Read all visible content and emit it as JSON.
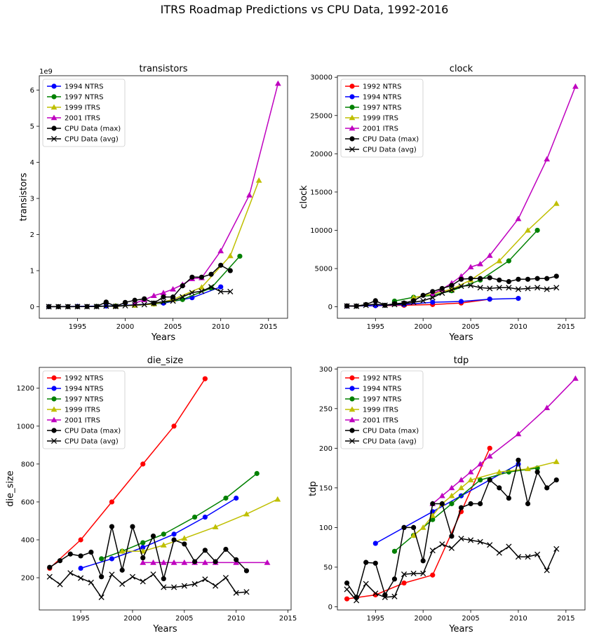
{
  "figure_title": "ITRS Roadmap Predictions vs CPU Data, 1992-2016",
  "series_styles": {
    "1992 NTRS": {
      "color": "#ff0000",
      "marker": "circle"
    },
    "1994 NTRS": {
      "color": "#0000ff",
      "marker": "circle"
    },
    "1997 NTRS": {
      "color": "#008000",
      "marker": "circle"
    },
    "1999 ITRS": {
      "color": "#bfbf00",
      "marker": "triangle"
    },
    "2001 ITRS": {
      "color": "#bf00bf",
      "marker": "triangle"
    },
    "CPU Data (max)": {
      "color": "#000000",
      "marker": "circle"
    },
    "CPU Data (avg)": {
      "color": "#000000",
      "marker": "x"
    }
  },
  "chart_data": [
    {
      "type": "line",
      "title": "transistors",
      "xlabel": "Years",
      "ylabel": "transistors",
      "xlim": [
        1991,
        2017
      ],
      "ylim": [
        -0.32,
        6.4
      ],
      "xticks": [
        1995,
        2000,
        2005,
        2010,
        2015
      ],
      "yticks": [
        0,
        1,
        2,
        3,
        4,
        5,
        6
      ],
      "y_multiplier_label": "1e9",
      "legend_position": "upper left",
      "series": [
        {
          "name": "1994 NTRS",
          "x": [
            1992,
            1995,
            1998,
            2001,
            2004,
            2007,
            2010
          ],
          "y": [
            0.003,
            0.01,
            0.02,
            0.05,
            0.1,
            0.25,
            0.55
          ]
        },
        {
          "name": "1997 NTRS",
          "x": [
            1997,
            1999,
            2001,
            2003,
            2006,
            2009,
            2012
          ],
          "y": [
            0.011,
            0.021,
            0.04,
            0.076,
            0.2,
            0.52,
            1.4
          ]
        },
        {
          "name": "1999 ITRS",
          "x": [
            1999,
            2001,
            2003,
            2005,
            2008,
            2011,
            2014
          ],
          "y": [
            0.021,
            0.04,
            0.076,
            0.2,
            0.54,
            1.41,
            3.5
          ]
        },
        {
          "name": "2001 ITRS",
          "x": [
            2001,
            2002,
            2003,
            2004,
            2005,
            2006,
            2007,
            2008,
            2010,
            2013,
            2016
          ],
          "y": [
            0.097,
            0.193,
            0.307,
            0.386,
            0.488,
            0.615,
            0.773,
            0.8,
            1.546,
            3.092,
            6.184
          ]
        },
        {
          "name": "CPU Data (max)",
          "x": [
            1992,
            1993,
            1994,
            1995,
            1996,
            1997,
            1998,
            1999,
            2000,
            2001,
            2002,
            2003,
            2004,
            2005,
            2006,
            2007,
            2008,
            2009,
            2010,
            2011
          ],
          "y": [
            0.003,
            0.003,
            0.003,
            0.004,
            0.006,
            0.008,
            0.13,
            0.01,
            0.12,
            0.18,
            0.22,
            0.1,
            0.27,
            0.27,
            0.58,
            0.82,
            0.82,
            0.9,
            1.15,
            1.0
          ]
        },
        {
          "name": "CPU Data (avg)",
          "x": [
            1992,
            1993,
            1994,
            1995,
            1996,
            1997,
            1998,
            1999,
            2000,
            2001,
            2002,
            2003,
            2004,
            2005,
            2006,
            2007,
            2008,
            2009,
            2010,
            2011
          ],
          "y": [
            0.002,
            0.002,
            0.002,
            0.003,
            0.004,
            0.005,
            0.02,
            0.01,
            0.03,
            0.05,
            0.06,
            0.1,
            0.14,
            0.16,
            0.27,
            0.39,
            0.43,
            0.55,
            0.42,
            0.42
          ]
        }
      ]
    },
    {
      "type": "line",
      "title": "clock",
      "xlabel": "Years",
      "ylabel": "clock",
      "xlim": [
        1991,
        2017
      ],
      "ylim": [
        -1500,
        30200
      ],
      "xticks": [
        1995,
        2000,
        2005,
        2010,
        2015
      ],
      "yticks": [
        0,
        5000,
        10000,
        15000,
        20000,
        25000,
        30000
      ],
      "y_multiplier_label": "",
      "legend_position": "upper left",
      "series": [
        {
          "name": "1992 NTRS",
          "x": [
            1992,
            1995,
            1998,
            2001,
            2004,
            2007
          ],
          "y": [
            100,
            150,
            200,
            300,
            500,
            1000
          ]
        },
        {
          "name": "1994 NTRS",
          "x": [
            1992,
            1995,
            1998,
            2001,
            2004,
            2007,
            2010
          ],
          "y": [
            100,
            150,
            300,
            600,
            700,
            1000,
            1100
          ]
        },
        {
          "name": "1997 NTRS",
          "x": [
            1997,
            1999,
            2001,
            2003,
            2006,
            2009,
            2012
          ],
          "y": [
            750,
            1250,
            1500,
            2100,
            3500,
            6000,
            10000
          ]
        },
        {
          "name": "1999 ITRS",
          "x": [
            1999,
            2001,
            2003,
            2005,
            2008,
            2011,
            2014
          ],
          "y": [
            1200,
            1700,
            2300,
            3500,
            6000,
            10000,
            13500
          ]
        },
        {
          "name": "2001 ITRS",
          "x": [
            2001,
            2002,
            2003,
            2004,
            2005,
            2006,
            2007,
            2010,
            2013,
            2016
          ],
          "y": [
            1700,
            2300,
            3100,
            4000,
            5200,
            5600,
            6700,
            11500,
            19300,
            28800
          ]
        },
        {
          "name": "CPU Data (max)",
          "x": [
            1992,
            1993,
            1994,
            1995,
            1996,
            1997,
            1998,
            1999,
            2000,
            2001,
            2002,
            2003,
            2004,
            2005,
            2006,
            2007,
            2008,
            2009,
            2010,
            2011,
            2012,
            2013,
            2014
          ],
          "y": [
            120,
            100,
            300,
            800,
            200,
            400,
            500,
            800,
            1500,
            2000,
            2400,
            2800,
            3600,
            3700,
            3700,
            3800,
            3500,
            3300,
            3600,
            3600,
            3700,
            3700,
            4000
          ]
        },
        {
          "name": "CPU Data (avg)",
          "x": [
            1992,
            1993,
            1994,
            1995,
            1996,
            1997,
            1998,
            1999,
            2000,
            2001,
            2002,
            2003,
            2004,
            2005,
            2006,
            2007,
            2008,
            2009,
            2010,
            2011,
            2012,
            2013,
            2014
          ],
          "y": [
            100,
            80,
            200,
            350,
            200,
            300,
            400,
            600,
            800,
            1200,
            1800,
            2200,
            2700,
            2800,
            2500,
            2400,
            2500,
            2500,
            2300,
            2400,
            2500,
            2300,
            2500
          ]
        }
      ]
    },
    {
      "type": "line",
      "title": "die_size",
      "xlabel": "Years",
      "ylabel": "die_size",
      "xlim": [
        1991,
        2015.3
      ],
      "ylim": [
        30,
        1310
      ],
      "xticks": [
        1995,
        2000,
        2005,
        2010,
        2015
      ],
      "yticks": [
        200,
        400,
        600,
        800,
        1000,
        1200
      ],
      "y_multiplier_label": "",
      "legend_position": "upper left",
      "series": [
        {
          "name": "1992 NTRS",
          "x": [
            1992,
            1995,
            1998,
            2001,
            2004,
            2007
          ],
          "y": [
            250,
            400,
            600,
            800,
            1000,
            1250
          ]
        },
        {
          "name": "1994 NTRS",
          "x": [
            1995,
            1998,
            2001,
            2004,
            2007,
            2010
          ],
          "y": [
            250,
            300,
            360,
            430,
            520,
            620
          ]
        },
        {
          "name": "1997 NTRS",
          "x": [
            1997,
            1999,
            2001,
            2003,
            2006,
            2009,
            2012
          ],
          "y": [
            300,
            340,
            385,
            430,
            520,
            620,
            750
          ]
        },
        {
          "name": "1999 ITRS",
          "x": [
            1999,
            2001,
            2003,
            2005,
            2008,
            2011,
            2014
          ],
          "y": [
            340,
            340,
            372,
            408,
            468,
            536,
            614
          ]
        },
        {
          "name": "2001 ITRS",
          "x": [
            2001,
            2002,
            2003,
            2004,
            2005,
            2006,
            2007,
            2008,
            2010,
            2013
          ],
          "y": [
            280,
            280,
            280,
            280,
            280,
            280,
            280,
            280,
            280,
            280
          ]
        },
        {
          "name": "CPU Data (max)",
          "x": [
            1992,
            1993,
            1994,
            1995,
            1996,
            1997,
            1998,
            1999,
            2000,
            2001,
            2002,
            2003,
            2004,
            2005,
            2006,
            2007,
            2008,
            2009,
            2010,
            2011
          ],
          "y": [
            255,
            290,
            325,
            315,
            335,
            205,
            470,
            240,
            470,
            305,
            420,
            195,
            400,
            378,
            285,
            345,
            285,
            350,
            295,
            237
          ]
        },
        {
          "name": "CPU Data (avg)",
          "x": [
            1992,
            1993,
            1994,
            1995,
            1996,
            1997,
            1998,
            1999,
            2000,
            2001,
            2002,
            2003,
            2004,
            2005,
            2006,
            2007,
            2008,
            2009,
            2010,
            2011
          ],
          "y": [
            205,
            165,
            225,
            198,
            175,
            97,
            217,
            167,
            205,
            180,
            218,
            150,
            150,
            157,
            167,
            192,
            157,
            200,
            120,
            125
          ]
        }
      ]
    },
    {
      "type": "line",
      "title": "tdp",
      "xlabel": "Years",
      "ylabel": "tdp",
      "xlim": [
        1991,
        2017
      ],
      "ylim": [
        -4,
        302
      ],
      "xticks": [
        1995,
        2000,
        2005,
        2010,
        2015
      ],
      "yticks": [
        0,
        50,
        100,
        150,
        200,
        250,
        300
      ],
      "y_multiplier_label": "",
      "legend_position": "upper left",
      "series": [
        {
          "name": "1992 NTRS",
          "x": [
            1992,
            1995,
            1998,
            2001,
            2004,
            2007
          ],
          "y": [
            10,
            15,
            30,
            40,
            120,
            200
          ]
        },
        {
          "name": "1994 NTRS",
          "x": [
            1995,
            1998,
            2001,
            2004,
            2007,
            2010
          ],
          "y": [
            80,
            100,
            120,
            140,
            160,
            180
          ]
        },
        {
          "name": "1997 NTRS",
          "x": [
            1997,
            1999,
            2001,
            2003,
            2006,
            2009,
            2012
          ],
          "y": [
            70,
            90,
            110,
            130,
            160,
            170,
            175
          ]
        },
        {
          "name": "1999 ITRS",
          "x": [
            1999,
            2000,
            2001,
            2002,
            2003,
            2004,
            2005,
            2008,
            2011,
            2014
          ],
          "y": [
            90,
            100,
            115,
            130,
            140,
            150,
            160,
            170,
            174,
            183
          ]
        },
        {
          "name": "2001 ITRS",
          "x": [
            2001,
            2002,
            2003,
            2004,
            2005,
            2006,
            2007,
            2010,
            2013,
            2016
          ],
          "y": [
            130,
            140,
            150,
            160,
            170,
            180,
            190,
            218,
            251,
            288
          ]
        },
        {
          "name": "CPU Data (max)",
          "x": [
            1992,
            1993,
            1994,
            1995,
            1996,
            1997,
            1998,
            1999,
            2000,
            2001,
            2002,
            2003,
            2004,
            2005,
            2006,
            2007,
            2008,
            2009,
            2010,
            2011,
            2012,
            2013,
            2014
          ],
          "y": [
            30,
            12,
            56,
            55,
            15,
            35,
            100,
            100,
            58,
            130,
            130,
            89,
            125,
            130,
            130,
            160,
            150,
            137,
            185,
            130,
            170,
            150,
            160
          ]
        },
        {
          "name": "CPU Data (avg)",
          "x": [
            1992,
            1993,
            1994,
            1995,
            1996,
            1997,
            1998,
            1999,
            2000,
            2001,
            2002,
            2003,
            2004,
            2005,
            2006,
            2007,
            2008,
            2009,
            2010,
            2011,
            2012,
            2013,
            2014
          ],
          "y": [
            22,
            8,
            29,
            17,
            12,
            13,
            41,
            42,
            42,
            71,
            79,
            74,
            86,
            84,
            82,
            78,
            68,
            76,
            63,
            63,
            66,
            46,
            73
          ]
        }
      ]
    }
  ]
}
